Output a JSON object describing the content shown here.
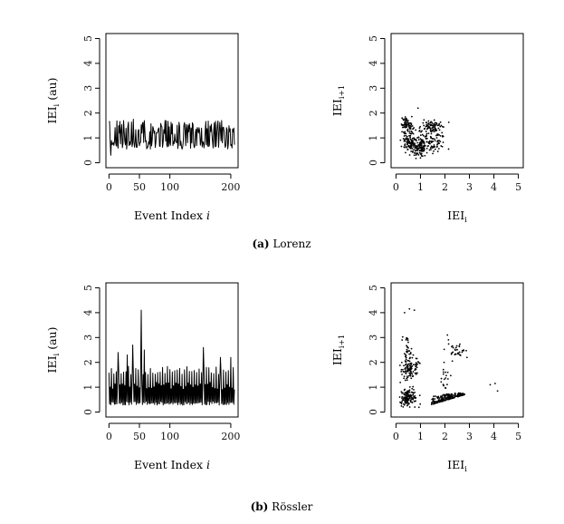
{
  "captions": [
    {
      "letter": "(a)",
      "text": "Lorenz"
    },
    {
      "letter": "(b)",
      "text": "Rössler"
    }
  ],
  "chart_data": [
    {
      "id": "lorenz-series",
      "type": "line",
      "xlabel": {
        "main": "Event Index ",
        "italic": "i"
      },
      "ylabel": {
        "main": "IEI",
        "sub": "i",
        "suffix": " (au)"
      },
      "xlim": [
        -5,
        212
      ],
      "ylim": [
        -0.2,
        5.2
      ],
      "xticks": [
        0,
        50,
        100,
        200
      ],
      "yticks": [
        0,
        1,
        2,
        3,
        4,
        5
      ],
      "generator": {
        "kind": "lorenz",
        "n": 207,
        "seed": 7
      }
    },
    {
      "id": "lorenz-return-map",
      "type": "scatter",
      "xlabel": {
        "main": "IEI",
        "sub": "i"
      },
      "ylabel": {
        "main": "IEI",
        "sub": "i+1"
      },
      "xlim": [
        -0.2,
        5.2
      ],
      "ylim": [
        -0.2,
        5.2
      ],
      "xticks": [
        0,
        1,
        2,
        3,
        4,
        5
      ],
      "yticks": [
        0,
        1,
        2,
        3,
        4,
        5
      ],
      "clusters": [
        {
          "cx": 0.45,
          "cy": 1.55,
          "sx": 0.12,
          "sy": 0.15,
          "n": 70
        },
        {
          "cx": 0.55,
          "cy": 0.85,
          "sx": 0.15,
          "sy": 0.2,
          "n": 90
        },
        {
          "cx": 0.95,
          "cy": 0.6,
          "sx": 0.15,
          "sy": 0.22,
          "n": 110
        },
        {
          "cx": 1.45,
          "cy": 1.45,
          "sx": 0.22,
          "sy": 0.14,
          "n": 80
        },
        {
          "cx": 1.25,
          "cy": 0.9,
          "sx": 0.25,
          "sy": 0.25,
          "n": 70
        },
        {
          "cx": 1.7,
          "cy": 0.8,
          "sx": 0.2,
          "sy": 0.18,
          "n": 30
        }
      ],
      "extra_points": [
        [
          0.9,
          2.2
        ],
        [
          2.15,
          0.55
        ],
        [
          1.9,
          1.05
        ],
        [
          0.25,
          1.8
        ]
      ]
    },
    {
      "id": "rossler-series",
      "type": "line",
      "xlabel": {
        "main": "Event Index ",
        "italic": "i"
      },
      "ylabel": {
        "main": "IEI",
        "sub": "i",
        "suffix": " (au)"
      },
      "xlim": [
        -5,
        212
      ],
      "ylim": [
        -0.2,
        5.2
      ],
      "xticks": [
        0,
        50,
        100,
        200
      ],
      "yticks": [
        0,
        1,
        2,
        3,
        4,
        5
      ],
      "generator": {
        "kind": "rossler",
        "n": 207,
        "seed": 11
      },
      "spikes": [
        [
          15,
          2.4
        ],
        [
          30,
          2.3
        ],
        [
          39,
          2.7
        ],
        [
          53,
          4.1
        ],
        [
          58,
          2.5
        ],
        [
          155,
          2.6
        ],
        [
          183,
          2.2
        ],
        [
          200,
          2.2
        ]
      ]
    },
    {
      "id": "rossler-return-map",
      "type": "scatter",
      "xlabel": {
        "main": "IEI",
        "sub": "i"
      },
      "ylabel": {
        "main": "IEI",
        "sub": "i+1"
      },
      "xlim": [
        -0.2,
        5.2
      ],
      "ylim": [
        -0.2,
        5.2
      ],
      "xticks": [
        0,
        1,
        2,
        3,
        4,
        5
      ],
      "yticks": [
        0,
        1,
        2,
        3,
        4,
        5
      ],
      "clusters": [
        {
          "cx": 0.55,
          "cy": 1.8,
          "sx": 0.18,
          "sy": 0.25,
          "n": 120
        },
        {
          "cx": 0.5,
          "cy": 0.55,
          "sx": 0.2,
          "sy": 0.2,
          "n": 140
        },
        {
          "cx": 0.45,
          "cy": 2.6,
          "sx": 0.08,
          "sy": 0.3,
          "n": 20
        },
        {
          "cx": 2.45,
          "cy": 2.5,
          "sx": 0.2,
          "sy": 0.15,
          "n": 35
        },
        {
          "cx": 2.0,
          "cy": 1.4,
          "sx": 0.1,
          "sy": 0.35,
          "n": 20
        }
      ],
      "wedge": {
        "x0": 1.45,
        "x1": 2.8,
        "ymin_at_x0": 0.3,
        "ymin_at_x1": 0.7,
        "spread": 0.35,
        "n": 220
      },
      "extra_points": [
        [
          0.35,
          4.0
        ],
        [
          0.55,
          4.15
        ],
        [
          0.75,
          4.1
        ],
        [
          4.05,
          1.15
        ],
        [
          4.15,
          0.85
        ],
        [
          3.85,
          1.1
        ],
        [
          0.25,
          2.9
        ],
        [
          2.9,
          2.2
        ],
        [
          2.1,
          3.1
        ]
      ]
    }
  ]
}
